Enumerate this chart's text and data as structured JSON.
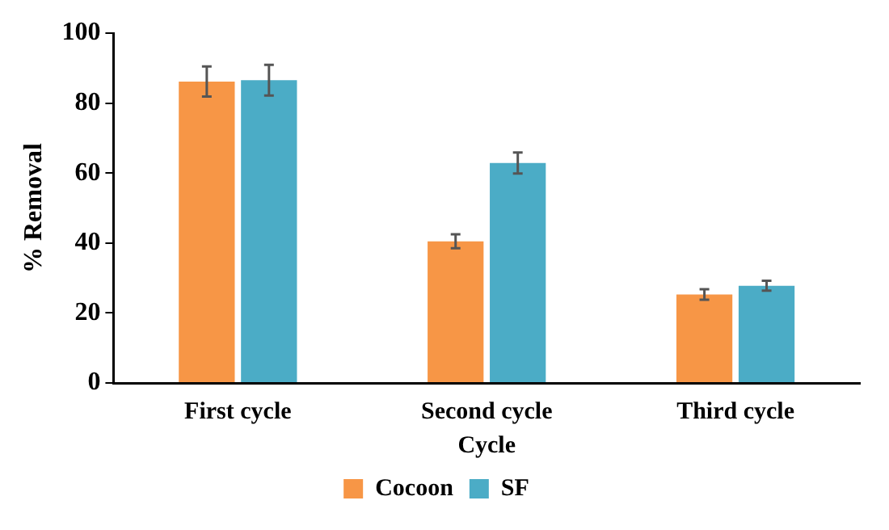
{
  "chart_data": {
    "type": "bar",
    "xlabel": "Cycle",
    "ylabel": "% Removal",
    "categories": [
      "First cycle",
      "Second cycle",
      "Third cycle"
    ],
    "series": [
      {
        "name": "Cocoon",
        "color": "#f79646",
        "values": [
          86.2,
          40.5,
          25.3
        ],
        "errors": [
          4.3,
          2,
          1.5
        ]
      },
      {
        "name": "SF",
        "color": "#4bacc6",
        "values": [
          86.6,
          62.9,
          27.8
        ],
        "errors": [
          4.4,
          3,
          1.4
        ]
      }
    ],
    "ylim": [
      0,
      100
    ],
    "yticks": [
      0,
      20,
      40,
      60,
      80,
      100
    ],
    "grid": false,
    "legend": "bottom"
  }
}
